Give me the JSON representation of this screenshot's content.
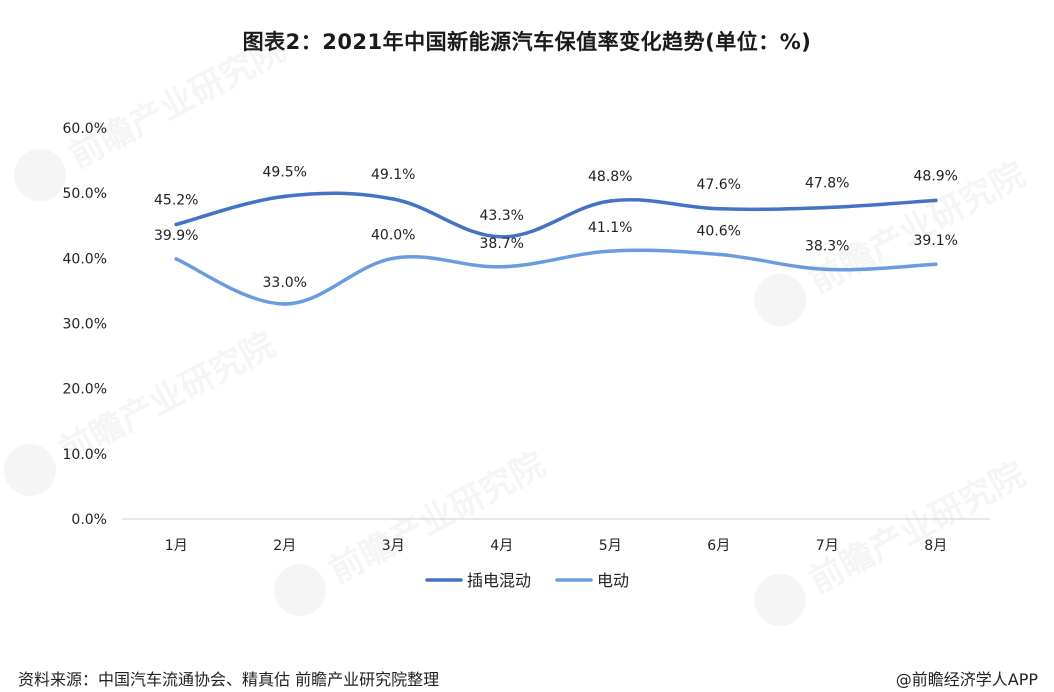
{
  "title": "图表2：2021年中国新能源汽车保值率变化趋势(单位：%)",
  "source": "资料来源：中国汽车流通协会、精真估 前瞻产业研究院整理",
  "credit": "@前瞻经济学人APP",
  "watermark_text": "前瞻产业研究院",
  "chart_data": {
    "type": "line",
    "categories": [
      "1月",
      "2月",
      "3月",
      "4月",
      "5月",
      "6月",
      "7月",
      "8月"
    ],
    "series": [
      {
        "name": "插电混动",
        "values": [
          45.2,
          49.5,
          49.1,
          43.3,
          48.8,
          47.6,
          47.8,
          48.9
        ],
        "color": "#4472c4"
      },
      {
        "name": "电动",
        "values": [
          39.9,
          33.0,
          40.0,
          38.7,
          41.1,
          40.6,
          38.3,
          39.1
        ],
        "color": "#6a9be0"
      }
    ],
    "ylim": [
      0,
      60
    ],
    "yticks": [
      0,
      10,
      20,
      30,
      40,
      50,
      60
    ],
    "ytick_labels": [
      "0.0%",
      "10.0%",
      "20.0%",
      "30.0%",
      "40.0%",
      "50.0%",
      "60.0%"
    ],
    "data_labels": [
      [
        "45.2%",
        "49.5%",
        "49.1%",
        "43.3%",
        "48.8%",
        "47.6%",
        "47.8%",
        "48.9%"
      ],
      [
        "39.9%",
        "33.0%",
        "40.0%",
        "38.7%",
        "41.1%",
        "40.6%",
        "38.3%",
        "39.1%"
      ]
    ],
    "xlabel": "",
    "ylabel": "",
    "grid": false,
    "legend": "bottom-center"
  }
}
